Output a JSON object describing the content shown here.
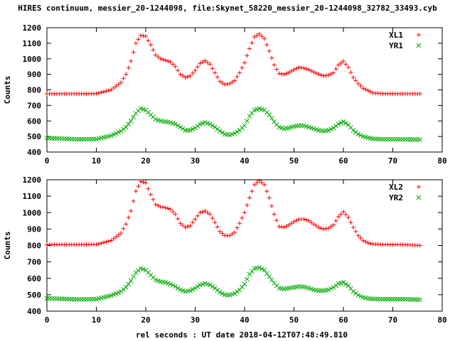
{
  "title": "HIRES continuum, messier_20-1244098, file:Skynet_58220_messier_20-1244098_32782_33493.cyb",
  "xlabel": "rel seconds : UT date 2018-04-12T07:48:49.810",
  "chart_data": [
    {
      "type": "scatter",
      "ylabel": "Counts",
      "xlim": [
        0,
        80
      ],
      "ylim": [
        400,
        1200
      ],
      "xticks": [
        0,
        10,
        20,
        30,
        40,
        50,
        60,
        70,
        80
      ],
      "yticks": [
        400,
        500,
        600,
        700,
        800,
        900,
        1000,
        1100,
        1200
      ],
      "grid": false,
      "legend": "top-right",
      "series": [
        {
          "name": "XL1",
          "marker": "plus",
          "color": "#ff0000",
          "x": [
            0,
            6,
            10,
            13,
            15,
            16,
            17,
            18,
            19,
            20,
            21,
            22,
            23,
            24,
            25,
            26,
            27,
            28,
            29,
            30,
            31,
            32,
            33,
            34,
            35,
            36,
            37,
            38,
            39,
            40,
            41,
            42,
            43,
            44,
            45,
            46,
            47,
            48,
            49,
            50,
            51,
            52,
            53,
            54,
            55,
            56,
            57,
            58,
            59,
            60,
            61,
            62,
            63,
            64,
            65,
            66,
            68,
            72,
            75.5
          ],
          "y": [
            775,
            775,
            776,
            800,
            848,
            900,
            985,
            1100,
            1150,
            1145,
            1090,
            1025,
            1000,
            990,
            980,
            950,
            900,
            880,
            890,
            925,
            970,
            988,
            965,
            910,
            855,
            835,
            840,
            860,
            910,
            975,
            1065,
            1140,
            1160,
            1130,
            1050,
            960,
            905,
            900,
            912,
            930,
            945,
            940,
            930,
            915,
            900,
            890,
            895,
            910,
            960,
            985,
            945,
            880,
            840,
            810,
            795,
            780,
            776,
            775,
            775
          ]
        },
        {
          "name": "YR1",
          "marker": "x",
          "color": "#00aa00",
          "x": [
            0,
            6,
            10,
            13,
            15,
            16,
            17,
            18,
            19,
            20,
            21,
            22,
            23,
            24,
            25,
            26,
            27,
            28,
            29,
            30,
            31,
            32,
            33,
            34,
            35,
            36,
            37,
            38,
            39,
            40,
            41,
            42,
            43,
            44,
            45,
            46,
            47,
            48,
            49,
            50,
            51,
            52,
            53,
            54,
            55,
            56,
            57,
            58,
            59,
            60,
            61,
            62,
            63,
            64,
            65,
            66,
            68,
            72,
            75.5
          ],
          "y": [
            490,
            482,
            483,
            505,
            535,
            560,
            600,
            650,
            680,
            670,
            640,
            610,
            600,
            595,
            590,
            580,
            560,
            540,
            540,
            555,
            580,
            590,
            580,
            560,
            535,
            515,
            510,
            520,
            540,
            570,
            630,
            670,
            680,
            670,
            640,
            595,
            560,
            550,
            555,
            565,
            570,
            570,
            560,
            550,
            540,
            535,
            540,
            555,
            580,
            595,
            575,
            540,
            515,
            500,
            492,
            485,
            482,
            482,
            480
          ]
        }
      ]
    },
    {
      "type": "scatter",
      "ylabel": "Counts",
      "xlim": [
        0,
        80
      ],
      "ylim": [
        400,
        1200
      ],
      "xticks": [
        0,
        10,
        20,
        30,
        40,
        50,
        60,
        70,
        80
      ],
      "yticks": [
        400,
        500,
        600,
        700,
        800,
        900,
        1000,
        1100,
        1200
      ],
      "grid": false,
      "legend": "top-right",
      "series": [
        {
          "name": "XL2",
          "marker": "plus",
          "color": "#ff0000",
          "x": [
            0,
            6,
            10,
            13,
            15,
            16,
            17,
            18,
            19,
            20,
            21,
            22,
            23,
            24,
            25,
            26,
            27,
            28,
            29,
            30,
            31,
            32,
            33,
            34,
            35,
            36,
            37,
            38,
            39,
            40,
            41,
            42,
            43,
            44,
            45,
            46,
            47,
            48,
            49,
            50,
            51,
            52,
            53,
            54,
            55,
            56,
            57,
            58,
            59,
            60,
            61,
            62,
            63,
            64,
            65,
            66,
            68,
            72,
            75.5
          ],
          "y": [
            805,
            805,
            806,
            830,
            875,
            930,
            1010,
            1130,
            1190,
            1180,
            1110,
            1050,
            1035,
            1030,
            1020,
            990,
            935,
            910,
            920,
            960,
            1000,
            1010,
            990,
            940,
            885,
            860,
            860,
            880,
            935,
            1000,
            1090,
            1170,
            1195,
            1170,
            1090,
            990,
            915,
            910,
            925,
            945,
            960,
            960,
            950,
            930,
            910,
            900,
            905,
            925,
            975,
            1005,
            970,
            910,
            860,
            830,
            815,
            808,
            805,
            805,
            800
          ]
        },
        {
          "name": "YR2",
          "marker": "x",
          "color": "#00aa00",
          "x": [
            0,
            6,
            10,
            13,
            15,
            16,
            17,
            18,
            19,
            20,
            21,
            22,
            23,
            24,
            25,
            26,
            27,
            28,
            29,
            30,
            31,
            32,
            33,
            34,
            35,
            36,
            37,
            38,
            39,
            40,
            41,
            42,
            43,
            44,
            45,
            46,
            47,
            48,
            49,
            50,
            51,
            52,
            53,
            54,
            55,
            56,
            57,
            58,
            59,
            60,
            61,
            62,
            63,
            64,
            65,
            66,
            68,
            72,
            75.5
          ],
          "y": [
            478,
            472,
            473,
            495,
            520,
            545,
            585,
            635,
            660,
            650,
            620,
            590,
            580,
            575,
            565,
            550,
            530,
            520,
            525,
            540,
            560,
            568,
            560,
            540,
            515,
            500,
            498,
            508,
            530,
            565,
            625,
            660,
            665,
            650,
            610,
            570,
            540,
            535,
            540,
            545,
            550,
            548,
            540,
            530,
            525,
            525,
            530,
            545,
            568,
            575,
            555,
            520,
            497,
            484,
            477,
            474,
            473,
            473,
            470
          ]
        }
      ]
    }
  ]
}
